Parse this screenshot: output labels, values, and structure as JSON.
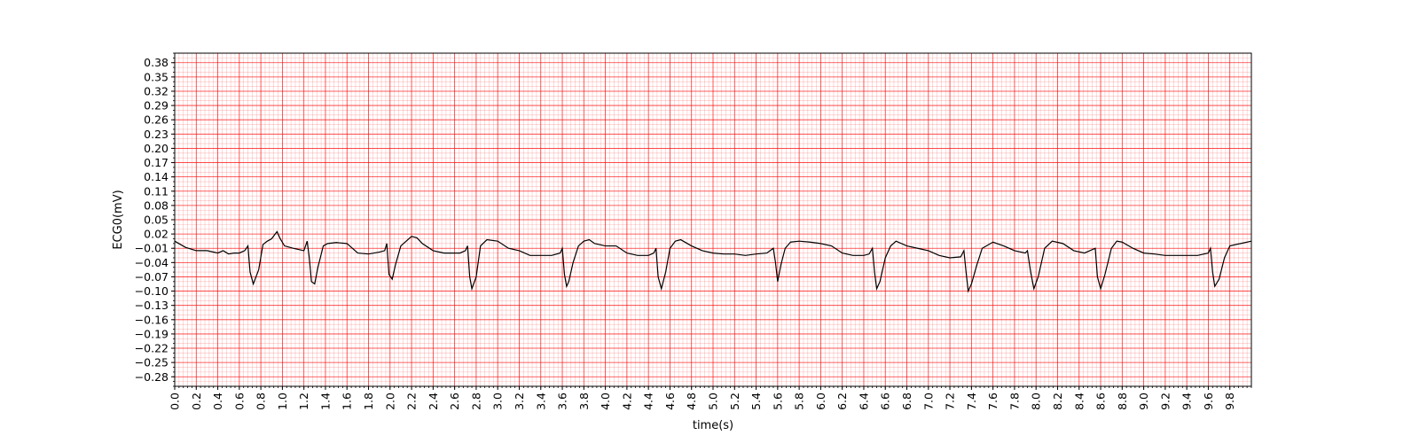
{
  "chart_data": {
    "type": "line",
    "title": "",
    "xlabel": "time(s)",
    "ylabel": "ECG0(mV)",
    "xlim": [
      0.0,
      10.0
    ],
    "ylim": [
      -0.3,
      0.4
    ],
    "x_ticks": [
      "0.0",
      "0.2",
      "0.4",
      "0.6",
      "0.8",
      "1.0",
      "1.2",
      "1.4",
      "1.6",
      "1.8",
      "2.0",
      "2.2",
      "2.4",
      "2.6",
      "2.8",
      "3.0",
      "3.2",
      "3.4",
      "3.6",
      "3.8",
      "4.0",
      "4.2",
      "4.4",
      "4.6",
      "4.8",
      "5.0",
      "5.2",
      "5.4",
      "5.6",
      "5.8",
      "6.0",
      "6.2",
      "6.4",
      "6.6",
      "6.8",
      "7.0",
      "7.2",
      "7.4",
      "7.6",
      "7.8",
      "8.0",
      "8.2",
      "8.4",
      "8.6",
      "8.8",
      "9.0",
      "9.2",
      "9.4",
      "9.6",
      "9.8"
    ],
    "y_ticks": [
      "0.38",
      "0.35",
      "0.32",
      "0.29",
      "0.26",
      "0.23",
      "0.20",
      "0.17",
      "0.14",
      "0.11",
      "0.08",
      "0.05",
      "0.02",
      "−0.01",
      "−0.04",
      "−0.07",
      "−0.10",
      "−0.13",
      "−0.16",
      "−0.19",
      "−0.22",
      "−0.25",
      "−0.28"
    ],
    "grid": true,
    "line_color": "#000000",
    "grid_color": "#ff0000",
    "series": [
      {
        "x": [
          0.0,
          0.1,
          0.2,
          0.3,
          0.4,
          0.45,
          0.5,
          0.55,
          0.6,
          0.65,
          0.68,
          0.7,
          0.73,
          0.78,
          0.82,
          0.86,
          0.9,
          0.95,
          0.98,
          1.02,
          1.1,
          1.2,
          1.23,
          1.25,
          1.27,
          1.3,
          1.33,
          1.38,
          1.42,
          1.5,
          1.6,
          1.7,
          1.8,
          1.9,
          1.95,
          1.97,
          1.99,
          2.02,
          2.05,
          2.1,
          2.15,
          2.2,
          2.25,
          2.3,
          2.4,
          2.5,
          2.6,
          2.65,
          2.7,
          2.72,
          2.74,
          2.76,
          2.8,
          2.84,
          2.9,
          3.0,
          3.1,
          3.2,
          3.3,
          3.4,
          3.5,
          3.58,
          3.6,
          3.62,
          3.64,
          3.66,
          3.7,
          3.75,
          3.8,
          3.85,
          3.9,
          4.0,
          4.1,
          4.2,
          4.3,
          4.4,
          4.45,
          4.47,
          4.49,
          4.52,
          4.56,
          4.6,
          4.65,
          4.7,
          4.8,
          4.9,
          5.0,
          5.1,
          5.2,
          5.3,
          5.4,
          5.5,
          5.56,
          5.58,
          5.6,
          5.63,
          5.67,
          5.72,
          5.8,
          5.9,
          6.0,
          6.1,
          6.2,
          6.3,
          6.4,
          6.45,
          6.48,
          6.5,
          6.52,
          6.55,
          6.6,
          6.65,
          6.7,
          6.8,
          6.9,
          7.0,
          7.1,
          7.2,
          7.3,
          7.33,
          7.35,
          7.37,
          7.4,
          7.45,
          7.5,
          7.6,
          7.7,
          7.8,
          7.9,
          7.92,
          7.95,
          7.98,
          8.02,
          8.08,
          8.15,
          8.25,
          8.35,
          8.45,
          8.55,
          8.57,
          8.6,
          8.64,
          8.7,
          8.75,
          8.8,
          8.9,
          9.0,
          9.1,
          9.2,
          9.3,
          9.4,
          9.5,
          9.6,
          9.62,
          9.64,
          9.66,
          9.7,
          9.75,
          9.8,
          9.9,
          10.0
        ],
        "values": [
          0.005,
          -0.008,
          -0.015,
          -0.015,
          -0.02,
          -0.015,
          -0.022,
          -0.02,
          -0.02,
          -0.015,
          -0.005,
          -0.06,
          -0.085,
          -0.055,
          -0.002,
          0.005,
          0.01,
          0.025,
          0.01,
          -0.005,
          -0.01,
          -0.015,
          0.005,
          -0.03,
          -0.08,
          -0.085,
          -0.05,
          -0.005,
          0.0,
          0.002,
          0.0,
          -0.02,
          -0.022,
          -0.018,
          -0.015,
          0.0,
          -0.065,
          -0.075,
          -0.045,
          -0.005,
          0.005,
          0.015,
          0.012,
          0.0,
          -0.015,
          -0.02,
          -0.02,
          -0.02,
          -0.015,
          -0.005,
          -0.07,
          -0.095,
          -0.07,
          -0.005,
          0.008,
          0.005,
          -0.01,
          -0.015,
          -0.025,
          -0.025,
          -0.025,
          -0.02,
          -0.01,
          -0.065,
          -0.09,
          -0.08,
          -0.04,
          -0.005,
          0.005,
          0.008,
          0.0,
          -0.005,
          -0.005,
          -0.02,
          -0.025,
          -0.025,
          -0.02,
          -0.01,
          -0.07,
          -0.095,
          -0.06,
          -0.01,
          0.005,
          0.008,
          -0.005,
          -0.015,
          -0.02,
          -0.022,
          -0.022,
          -0.025,
          -0.022,
          -0.02,
          -0.01,
          -0.04,
          -0.08,
          -0.045,
          -0.01,
          0.003,
          0.005,
          0.003,
          0.0,
          -0.005,
          -0.02,
          -0.025,
          -0.025,
          -0.022,
          -0.01,
          -0.06,
          -0.095,
          -0.08,
          -0.03,
          -0.005,
          0.005,
          -0.005,
          -0.01,
          -0.015,
          -0.025,
          -0.03,
          -0.028,
          -0.015,
          -0.06,
          -0.1,
          -0.085,
          -0.045,
          -0.01,
          0.003,
          -0.005,
          -0.015,
          -0.02,
          -0.015,
          -0.06,
          -0.095,
          -0.07,
          -0.01,
          0.005,
          0.0,
          -0.015,
          -0.02,
          -0.01,
          -0.07,
          -0.095,
          -0.065,
          -0.01,
          0.005,
          0.003,
          -0.01,
          -0.02,
          -0.022,
          -0.025,
          -0.025,
          -0.025,
          -0.025,
          -0.02,
          -0.01,
          -0.06,
          -0.09,
          -0.075,
          -0.03,
          -0.005,
          0.0,
          0.005
        ]
      }
    ]
  }
}
